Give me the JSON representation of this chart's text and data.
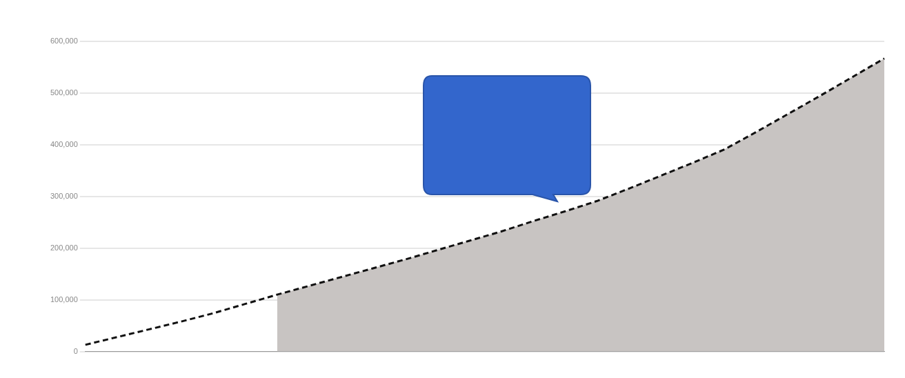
{
  "chart_data": {
    "type": "line",
    "categories": [
      null,
      null,
      null,
      null,
      null,
      null,
      null,
      null,
      null,
      null,
      null,
      null,
      null,
      null,
      null,
      null,
      null,
      null,
      null,
      null,
      null,
      null,
      null,
      null,
      null,
      null
    ],
    "series": [
      {
        "type": "area",
        "color": "#c8c4c2",
        "values": [
          null,
          null,
          null,
          null,
          null,
          null,
          110000,
          127000,
          144000,
          161000,
          178000,
          196000,
          214000,
          232000,
          252000,
          271000,
          291000,
          315000,
          340000,
          365000,
          391000,
          425000,
          460000,
          495000,
          531000,
          567000
        ]
      },
      {
        "type": "line",
        "color": "#111111",
        "line_style": "dashed",
        "values": [
          13000,
          28000,
          43000,
          58000,
          74000,
          92000,
          110000,
          127000,
          144000,
          161000,
          178000,
          196000,
          214000,
          232000,
          252000,
          271000,
          291000,
          315000,
          340000,
          365000,
          391000,
          425000,
          460000,
          495000,
          531000,
          567000
        ]
      }
    ],
    "ylim": [
      0,
      600000
    ],
    "yticks": [
      0,
      {
        "value": 100000,
        "label": "100,000"
      },
      {
        "value": 200000,
        "label": "200,000"
      },
      {
        "value": 300000,
        "label": "300,000"
      },
      {
        "value": 400000,
        "label": "400,000"
      },
      {
        "value": 500000,
        "label": "500,000"
      },
      {
        "value": 600000,
        "label": "600,000"
      }
    ],
    "grid": "y",
    "legend": false,
    "marker": "none"
  }
}
